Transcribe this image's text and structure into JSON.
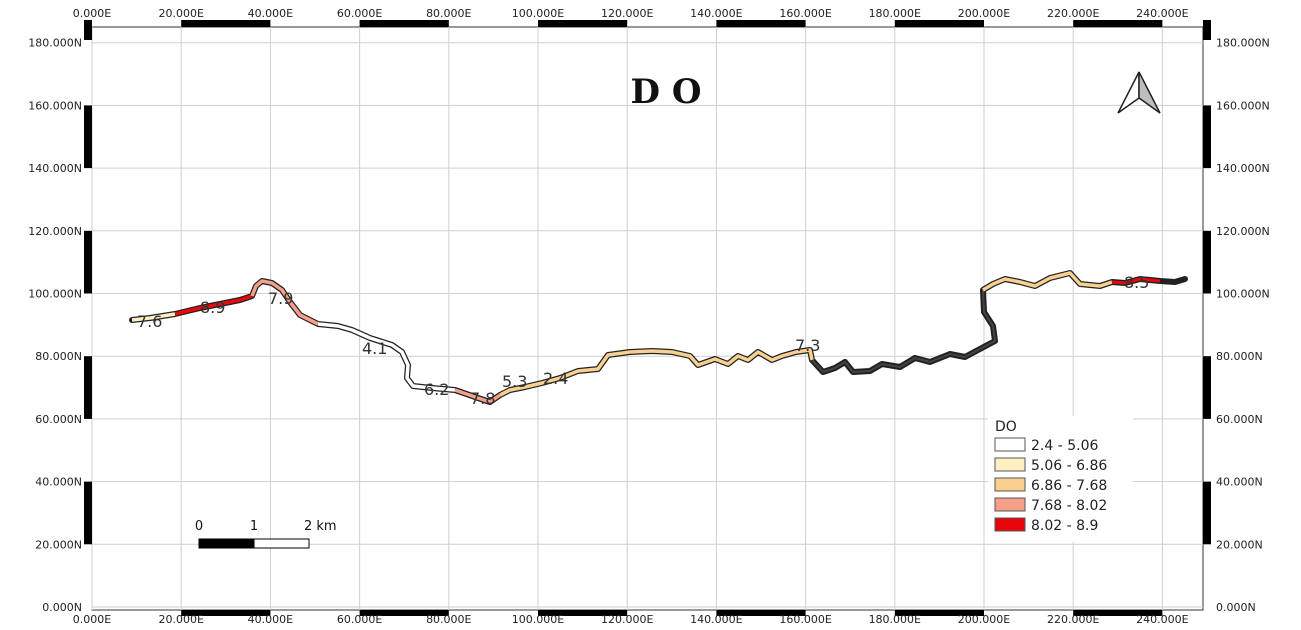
{
  "map": {
    "title": "D O",
    "x_ticks": [
      "0.000E",
      "20.000E",
      "40.000E",
      "60.000E",
      "80.000E",
      "100.000E",
      "120.000E",
      "140.000E",
      "160.000E",
      "180.000E",
      "200.000E",
      "220.000E",
      "240.000E"
    ],
    "y_ticks": [
      "180.000N",
      "160.000N",
      "140.000N",
      "120.000N",
      "100.000N",
      "80.000N",
      "60.000N",
      "40.000N",
      "20.000N",
      "0.000N"
    ],
    "value_labels": [
      "7.6",
      "8.9",
      "7.9",
      "4.1",
      "6.2",
      "7.8",
      "5.3",
      "2.4",
      "7.3",
      "8.5"
    ],
    "legend": {
      "title": "DO",
      "classes": [
        {
          "label": "2.4 - 5.06",
          "color": "#ffffff"
        },
        {
          "label": "5.06 - 6.86",
          "color": "#fdf0c2"
        },
        {
          "label": "6.86 - 7.68",
          "color": "#f9d08f"
        },
        {
          "label": "7.68 - 8.02",
          "color": "#f6a08a"
        },
        {
          "label": "8.02 - 8.9",
          "color": "#e8080c"
        }
      ]
    },
    "scale_bar": {
      "labels": [
        "0",
        "1",
        "2 km"
      ]
    },
    "north_arrow_icon": "north-arrow-icon"
  }
}
